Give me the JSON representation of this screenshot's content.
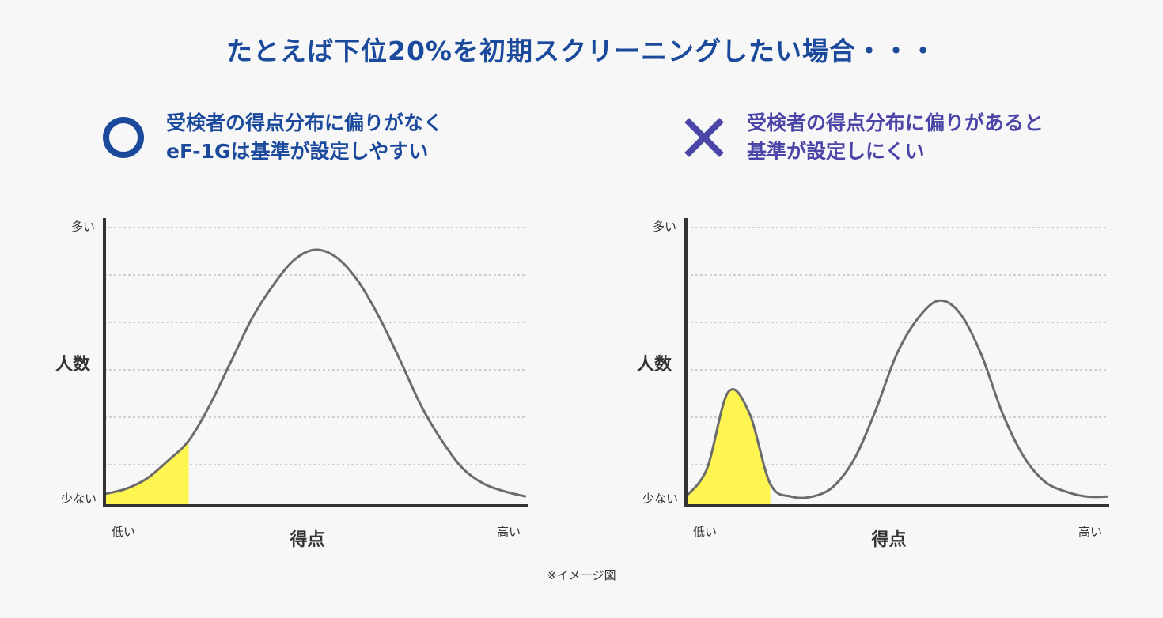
{
  "title": "たとえば下位20%を初期スクリーニングしたい場合・・・",
  "panels": {
    "left": {
      "mark": "circle-icon",
      "heading_line1": "受検者の得点分布に偏りがなく",
      "heading_line2": "eF-1Gは基準が設定しやすい"
    },
    "right": {
      "mark": "cross-icon",
      "heading_line1": "受検者の得点分布に偏りがあると",
      "heading_line2": "基準が設定しにくい"
    }
  },
  "colors": {
    "title": "#1b4a9c",
    "ok": "#1b4a9c",
    "ng": "#4b45a8",
    "curve": "#6b6b6b",
    "highlight": "#fff550",
    "axis": "#333333",
    "grid": "#aaaaaa"
  },
  "note": "※イメージ図",
  "chart_data": [
    {
      "type": "area",
      "xlabel": "得点",
      "ylabel": "人数",
      "x_tick_labels": [
        "低い",
        "高い"
      ],
      "y_tick_labels": [
        "少ない",
        "多い"
      ],
      "grid": true,
      "grid_lines": 6,
      "xlim": [
        0,
        100
      ],
      "ylim": [
        0,
        100
      ],
      "highlight_region": [
        0,
        20
      ],
      "x": [
        0,
        5,
        10,
        15,
        20,
        25,
        30,
        35,
        40,
        45,
        50,
        55,
        60,
        65,
        70,
        75,
        80,
        85,
        90,
        95,
        100
      ],
      "series": [
        {
          "values": [
            4,
            6,
            10,
            17,
            25,
            39,
            56,
            73,
            86,
            96,
            100,
            97,
            88,
            74,
            57,
            39,
            25,
            14,
            8,
            5,
            3
          ]
        }
      ]
    },
    {
      "type": "area",
      "xlabel": "得点",
      "ylabel": "人数",
      "x_tick_labels": [
        "低い",
        "高い"
      ],
      "y_tick_labels": [
        "少ない",
        "多い"
      ],
      "grid": true,
      "grid_lines": 6,
      "xlim": [
        0,
        100
      ],
      "ylim": [
        0,
        100
      ],
      "highlight_region": [
        0,
        20
      ],
      "x": [
        0,
        5,
        10,
        15,
        20,
        25,
        30,
        35,
        40,
        45,
        50,
        55,
        60,
        65,
        70,
        75,
        80,
        85,
        90,
        95,
        100
      ],
      "series": [
        {
          "values": [
            3,
            14,
            44,
            36,
            8,
            3,
            3,
            7,
            18,
            37,
            59,
            73,
            80,
            75,
            59,
            36,
            19,
            9,
            5,
            3,
            3
          ]
        }
      ]
    }
  ]
}
